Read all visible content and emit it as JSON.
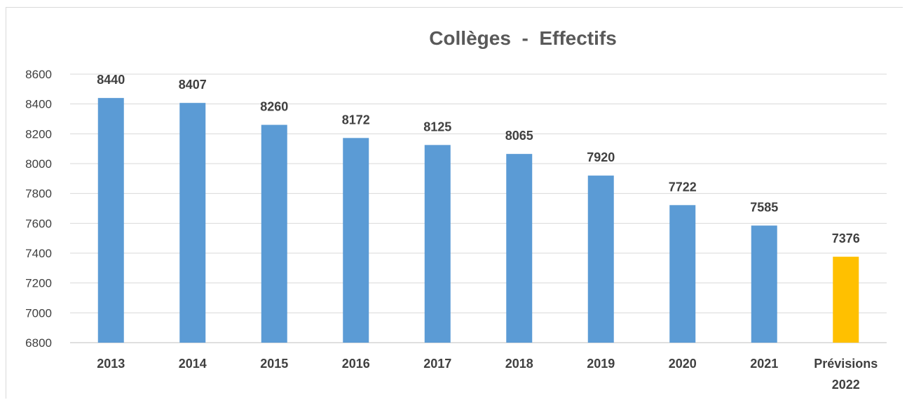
{
  "chart_data": {
    "type": "bar",
    "title": "Collèges  -  Effectifs",
    "categories": [
      "2013",
      "2014",
      "2015",
      "2016",
      "2017",
      "2018",
      "2019",
      "2020",
      "2021",
      "Prévisions 2022"
    ],
    "category_lines": [
      [
        "2013"
      ],
      [
        "2014"
      ],
      [
        "2015"
      ],
      [
        "2016"
      ],
      [
        "2017"
      ],
      [
        "2018"
      ],
      [
        "2019"
      ],
      [
        "2020"
      ],
      [
        "2021"
      ],
      [
        "Prévisions",
        "2022"
      ]
    ],
    "values": [
      8440,
      8407,
      8260,
      8172,
      8125,
      8065,
      7920,
      7722,
      7585,
      7376
    ],
    "ylim": [
      6800,
      8600
    ],
    "yticks": [
      6800,
      7000,
      7200,
      7400,
      7600,
      7800,
      8000,
      8200,
      8400,
      8600
    ],
    "grid": true,
    "legend": "none",
    "colors": {
      "bar": "#5b9bd5",
      "highlight_bar": "#ffc000"
    },
    "highlight_index": 9
  }
}
